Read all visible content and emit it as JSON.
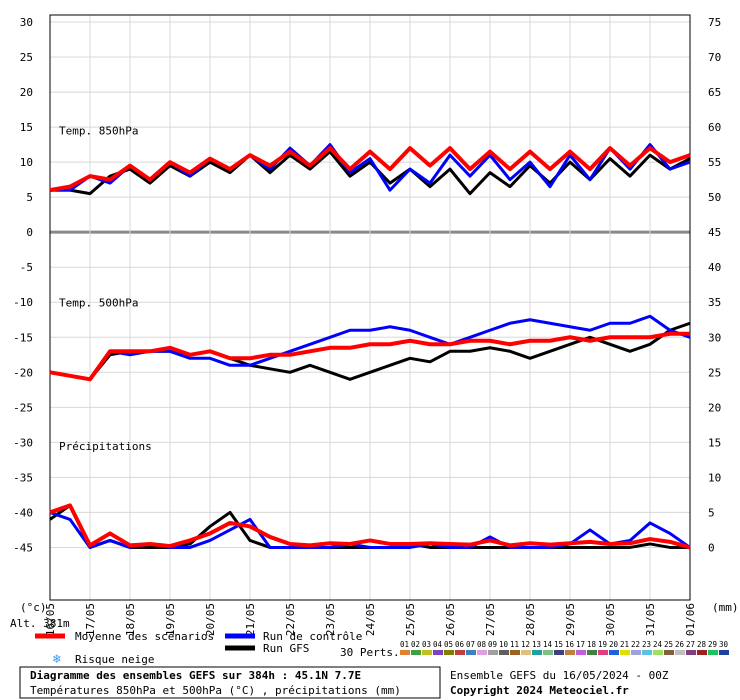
{
  "chart_data": {
    "type": "line",
    "x": [
      0,
      12,
      24,
      36,
      48,
      60,
      72,
      84,
      96,
      108,
      120,
      132,
      144,
      156,
      168,
      180,
      192,
      204,
      216,
      228,
      240,
      252,
      264,
      276,
      288,
      300,
      312,
      324,
      336,
      348,
      360,
      372,
      384
    ],
    "xlim": [
      0,
      384
    ],
    "xticks": [
      {
        "value": 0,
        "label": "16/05"
      },
      {
        "value": 24,
        "label": "17/05"
      },
      {
        "value": 48,
        "label": "18/05"
      },
      {
        "value": 72,
        "label": "19/05"
      },
      {
        "value": 96,
        "label": "20/05"
      },
      {
        "value": 120,
        "label": "21/05"
      },
      {
        "value": 144,
        "label": "22/05"
      },
      {
        "value": 168,
        "label": "23/05"
      },
      {
        "value": 192,
        "label": "24/05"
      },
      {
        "value": 216,
        "label": "25/05"
      },
      {
        "value": 240,
        "label": "26/05"
      },
      {
        "value": 264,
        "label": "27/05"
      },
      {
        "value": 288,
        "label": "28/05"
      },
      {
        "value": 312,
        "label": "29/05"
      },
      {
        "value": 336,
        "label": "30/05"
      },
      {
        "value": 360,
        "label": "31/05"
      },
      {
        "value": 384,
        "label": "01/06"
      }
    ],
    "ylim": [
      -52.5,
      31
    ],
    "yticks": [
      30,
      25,
      20,
      15,
      10,
      5,
      0,
      -5,
      -10,
      -15,
      -20,
      -25,
      -30,
      -35,
      -40,
      -45
    ],
    "y2lim": [
      -7.5,
      76
    ],
    "y2ticks": [
      75,
      70,
      65,
      60,
      55,
      50,
      45,
      40,
      35,
      30,
      25,
      20,
      15,
      10,
      5,
      0
    ],
    "y_unit": "(°c)",
    "y2_unit": "(mm)",
    "grid": true,
    "panels": [
      {
        "label": "Temp. 850hPa",
        "series": [
          {
            "name": "Run GFS",
            "color": "#000000",
            "values": [
              6,
              6,
              5.5,
              8,
              9,
              7,
              9.5,
              8,
              10,
              8.5,
              11,
              8.5,
              11,
              9,
              11.5,
              8,
              10,
              7,
              9,
              6.5,
              9,
              5.5,
              8.5,
              6.5,
              9.5,
              7,
              10,
              7.5,
              10.5,
              8,
              11,
              9,
              10.5
            ]
          },
          {
            "name": "Run de contrôle",
            "color": "#0000ff",
            "values": [
              6,
              6,
              8,
              7,
              9.5,
              7.5,
              10,
              8,
              10.5,
              9,
              11,
              9,
              12,
              9.5,
              12.5,
              8.5,
              10.5,
              6,
              9,
              7,
              11,
              8,
              11,
              7.5,
              10,
              6.5,
              11,
              7.5,
              12,
              9,
              12.5,
              9,
              10
            ]
          },
          {
            "name": "Moyenne des scénarios",
            "color": "#ff0000",
            "values": [
              6,
              6.5,
              8,
              7.5,
              9.5,
              7.5,
              10,
              8.5,
              10.5,
              9,
              11,
              9.5,
              11.5,
              9.5,
              12,
              9,
              11.5,
              9,
              12,
              9.5,
              12,
              9,
              11.5,
              9,
              11.5,
              9,
              11.5,
              9,
              12,
              9.5,
              12,
              10,
              11
            ]
          }
        ]
      },
      {
        "label": "Temp. 500hPa",
        "series": [
          {
            "name": "Run GFS",
            "color": "#000000",
            "values": [
              -20,
              -20.5,
              -21,
              -17.5,
              -17,
              -17,
              -17,
              -17.5,
              -17,
              -18,
              -19,
              -19.5,
              -20,
              -19,
              -20,
              -21,
              -20,
              -19,
              -18,
              -18.5,
              -17,
              -17,
              -16.5,
              -17,
              -18,
              -17,
              -16,
              -15,
              -16,
              -17,
              -16,
              -14,
              -13
            ]
          },
          {
            "name": "Run de contrôle",
            "color": "#0000ff",
            "values": [
              -20,
              -20.5,
              -21,
              -17,
              -17.5,
              -17,
              -17,
              -18,
              -18,
              -19,
              -19,
              -18,
              -17,
              -16,
              -15,
              -14,
              -14,
              -13.5,
              -14,
              -15,
              -16,
              -15,
              -14,
              -13,
              -12.5,
              -13,
              -13.5,
              -14,
              -13,
              -13,
              -12,
              -14,
              -15
            ]
          },
          {
            "name": "Moyenne des scénarios",
            "color": "#ff0000",
            "values": [
              -20,
              -20.5,
              -21,
              -17,
              -17,
              -17,
              -16.5,
              -17.5,
              -17,
              -18,
              -18,
              -17.5,
              -17.5,
              -17,
              -16.5,
              -16.5,
              -16,
              -16,
              -15.5,
              -16,
              -16,
              -15.5,
              -15.5,
              -16,
              -15.5,
              -15.5,
              -15,
              -15.5,
              -15,
              -15,
              -15,
              -14.5,
              -14.5
            ]
          }
        ]
      },
      {
        "label": "Précipitations",
        "series": [
          {
            "name": "Run GFS",
            "color": "#000000",
            "axis": "y2",
            "values": [
              4,
              6,
              0,
              1,
              0,
              0,
              0,
              0.5,
              3,
              5,
              1,
              0,
              0,
              0,
              0,
              0,
              0,
              0,
              0.5,
              0,
              0,
              0,
              0,
              0,
              0,
              0,
              0,
              0,
              0,
              0,
              0.5,
              0,
              0
            ]
          },
          {
            "name": "Run de contrôle",
            "color": "#0000ff",
            "axis": "y2",
            "values": [
              5,
              4,
              0,
              1,
              0,
              0.5,
              0,
              0,
              1,
              2.5,
              4,
              0,
              0,
              0,
              0,
              0.5,
              0,
              0,
              0,
              0.5,
              0,
              0,
              1.5,
              0,
              0,
              0,
              0.5,
              2.5,
              0.5,
              1,
              3.5,
              2,
              0
            ]
          },
          {
            "name": "Moyenne des scénarios",
            "color": "#ff0000",
            "axis": "y2",
            "values": [
              5,
              6,
              0.3,
              2,
              0.3,
              0.5,
              0.2,
              1,
              2,
              3.5,
              3,
              1.5,
              0.5,
              0.3,
              0.6,
              0.5,
              1,
              0.5,
              0.5,
              0.6,
              0.5,
              0.4,
              1,
              0.3,
              0.6,
              0.4,
              0.6,
              0.8,
              0.5,
              0.6,
              1.2,
              0.8,
              0
            ]
          }
        ]
      }
    ],
    "altitude": "Alt. 381m",
    "snow_risk": "Risque neige",
    "perturbations": {
      "label": "30 Perts.",
      "members": [
        {
          "name": "01",
          "color": "#e08030"
        },
        {
          "name": "02",
          "color": "#40a040"
        },
        {
          "name": "03",
          "color": "#c0c020"
        },
        {
          "name": "04",
          "color": "#8040c0"
        },
        {
          "name": "05",
          "color": "#808000"
        },
        {
          "name": "06",
          "color": "#c04040"
        },
        {
          "name": "07",
          "color": "#4080c0"
        },
        {
          "name": "08",
          "color": "#e0a0e0"
        },
        {
          "name": "09",
          "color": "#a0a0a0"
        },
        {
          "name": "10",
          "color": "#606060"
        },
        {
          "name": "11",
          "color": "#a06020"
        },
        {
          "name": "12",
          "color": "#e0c080"
        },
        {
          "name": "13",
          "color": "#20a0a0"
        },
        {
          "name": "14",
          "color": "#80c080"
        },
        {
          "name": "15",
          "color": "#404080"
        },
        {
          "name": "16",
          "color": "#c08040"
        },
        {
          "name": "17",
          "color": "#c060e0"
        },
        {
          "name": "18",
          "color": "#408040"
        },
        {
          "name": "19",
          "color": "#e04080"
        },
        {
          "name": "20",
          "color": "#2060e0"
        },
        {
          "name": "21",
          "color": "#e0e000"
        },
        {
          "name": "22",
          "color": "#a0a0e0"
        },
        {
          "name": "23",
          "color": "#60c0e0"
        },
        {
          "name": "24",
          "color": "#a0e060"
        },
        {
          "name": "25",
          "color": "#806040"
        },
        {
          "name": "26",
          "color": "#c0c0c0"
        },
        {
          "name": "27",
          "color": "#804080"
        },
        {
          "name": "28",
          "color": "#a02020"
        },
        {
          "name": "29",
          "color": "#20c060"
        },
        {
          "name": "30",
          "color": "#2040a0"
        }
      ]
    },
    "footer": {
      "title": "Diagramme des ensembles GEFS sur 384h : 45.1N 7.7E",
      "subtitle": "Températures 850hPa et 500hPa (°C) , précipitations (mm)",
      "run": "Ensemble GEFS du 16/05/2024 - 00Z",
      "copyright": "Copyright 2024 Meteociel.fr"
    }
  }
}
